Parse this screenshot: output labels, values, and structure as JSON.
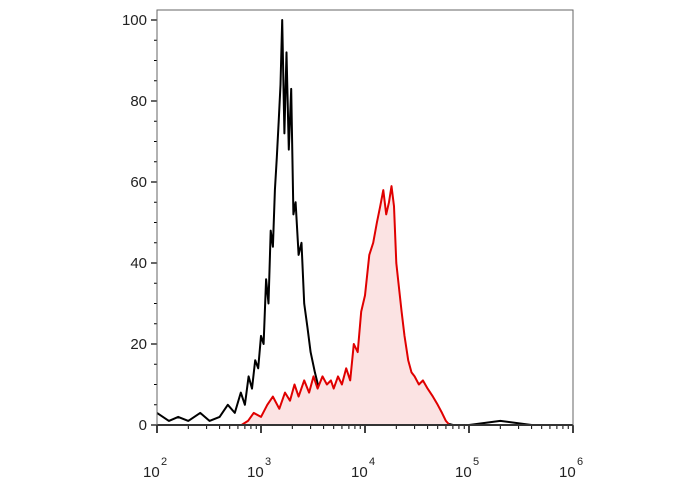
{
  "chart_data": {
    "type": "area",
    "title": "",
    "xlabel": "",
    "ylabel": "",
    "x_scale": "log",
    "xlim": [
      100,
      1000000
    ],
    "ylim": [
      0,
      100
    ],
    "y_ticks": [
      {
        "value": 0,
        "label": "0"
      },
      {
        "value": 20,
        "label": "20"
      },
      {
        "value": 40,
        "label": "40"
      },
      {
        "value": 60,
        "label": "60"
      },
      {
        "value": 80,
        "label": "80"
      },
      {
        "value": 100,
        "label": "100"
      }
    ],
    "x_ticks": [
      {
        "value": 100,
        "base": "10",
        "exp": "2"
      },
      {
        "value": 1000,
        "base": "10",
        "exp": "3"
      },
      {
        "value": 10000,
        "base": "10",
        "exp": "4"
      },
      {
        "value": 100000,
        "base": "10",
        "exp": "5"
      },
      {
        "value": 1000000,
        "base": "10",
        "exp": "6"
      }
    ],
    "grid": false,
    "series": [
      {
        "color": "#000000",
        "fill": "none",
        "x": [
          100,
          130,
          160,
          200,
          260,
          320,
          400,
          480,
          560,
          640,
          700,
          760,
          820,
          880,
          940,
          1000,
          1060,
          1120,
          1180,
          1240,
          1300,
          1360,
          1420,
          1480,
          1540,
          1600,
          1680,
          1760,
          1850,
          1950,
          2050,
          2150,
          2300,
          2450,
          2600,
          2800,
          3000,
          3300,
          3600,
          4000,
          4500,
          5000,
          5600,
          6300,
          7000,
          8000,
          9000,
          10000,
          12000,
          14000,
          17000,
          20000,
          25000,
          30000,
          40000,
          50000,
          70000,
          100000,
          200000,
          400000,
          1000000
        ],
        "y": [
          3,
          1,
          2,
          1,
          3,
          1,
          2,
          5,
          3,
          8,
          5,
          12,
          9,
          16,
          14,
          22,
          20,
          36,
          30,
          48,
          44,
          58,
          66,
          75,
          84,
          100,
          72,
          92,
          68,
          83,
          52,
          55,
          42,
          45,
          30,
          24,
          18,
          13,
          9,
          8,
          6,
          4,
          3,
          2,
          3,
          1,
          2,
          1,
          1,
          0,
          1,
          0,
          1,
          0,
          0,
          1,
          0,
          0,
          1,
          0,
          0
        ]
      },
      {
        "color": "#e00000",
        "fill": "#fbe3e3",
        "x": [
          650,
          750,
          850,
          1000,
          1150,
          1300,
          1500,
          1700,
          1900,
          2100,
          2300,
          2600,
          2900,
          3200,
          3500,
          3900,
          4300,
          4700,
          5000,
          5500,
          6000,
          6600,
          7200,
          7800,
          8500,
          9200,
          10000,
          11000,
          12000,
          13000,
          14000,
          15000,
          16000,
          17000,
          18000,
          19000,
          20000,
          21000,
          22500,
          24000,
          26000,
          28000,
          30000,
          33000,
          36000,
          40000,
          45000,
          50000,
          55000,
          60000,
          65000
        ],
        "y": [
          0,
          1,
          3,
          2,
          5,
          7,
          4,
          8,
          6,
          10,
          7,
          11,
          8,
          12,
          9,
          12,
          10,
          11,
          9,
          12,
          10,
          14,
          11,
          20,
          18,
          28,
          32,
          42,
          45,
          50,
          54,
          58,
          52,
          55,
          59,
          54,
          40,
          35,
          28,
          22,
          16,
          13,
          12,
          10,
          11,
          9,
          7,
          5,
          3,
          1,
          0
        ]
      }
    ]
  }
}
